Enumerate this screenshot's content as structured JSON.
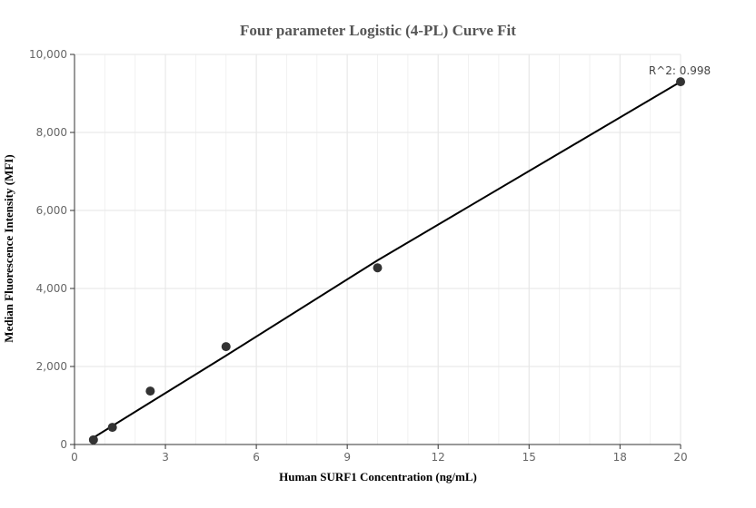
{
  "chart_data": {
    "type": "scatter",
    "title": "Four parameter Logistic (4-PL) Curve Fit",
    "xlabel": "Human SURF1 Concentration (ng/mL)",
    "ylabel": "Median Fluorescence Intensity (MFI)",
    "xlim": [
      0,
      20
    ],
    "ylim": [
      0,
      10000
    ],
    "x_ticks": [
      0,
      3,
      6,
      9,
      12,
      15,
      18,
      20
    ],
    "x_tick_labels": [
      "0",
      "3",
      "6",
      "9",
      "12",
      "15",
      "18",
      "20"
    ],
    "y_ticks": [
      0,
      2000,
      4000,
      6000,
      8000,
      10000
    ],
    "y_tick_labels": [
      "0",
      "2,000",
      "4,000",
      "6,000",
      "8,000",
      "10,000"
    ],
    "grid": true,
    "points": [
      {
        "x": 0.625,
        "y": 120
      },
      {
        "x": 1.25,
        "y": 440
      },
      {
        "x": 2.5,
        "y": 1370
      },
      {
        "x": 5,
        "y": 2510
      },
      {
        "x": 10,
        "y": 4530
      },
      {
        "x": 20,
        "y": 9300
      }
    ],
    "fit_curve": {
      "x": [
        0.625,
        2.5,
        5,
        10,
        20
      ],
      "y": [
        175,
        1080,
        2280,
        4720,
        9300
      ]
    },
    "annotation": "R^2: 0.998",
    "colors": {
      "points": "#333333",
      "curve": "#000000",
      "grid": "#e6e6e6",
      "axis": "#333333"
    }
  }
}
